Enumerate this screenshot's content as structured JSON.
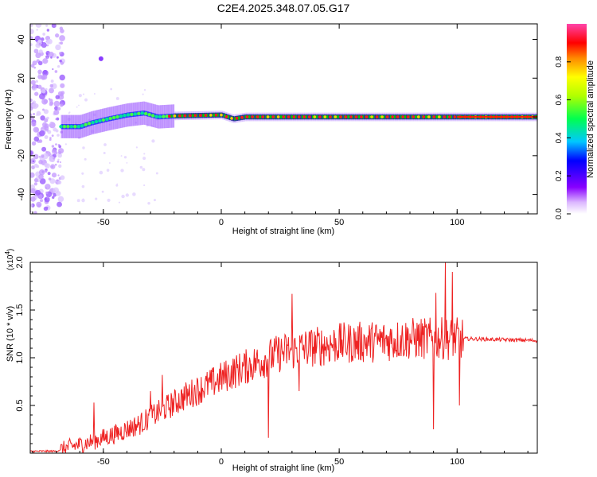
{
  "title": "C2E4.2025.348.07.05.G17",
  "colors": {
    "snr_line": "#ee2222",
    "axis": "#000000",
    "background": "#ffffff"
  },
  "chart_data": [
    {
      "type": "heatmap",
      "xlabel": "Height of straight line (km)",
      "ylabel": "Frequency (Hz)",
      "xlim": [
        -81,
        134
      ],
      "ylim": [
        -50,
        48
      ],
      "x_ticks": [
        -50,
        0,
        50,
        100
      ],
      "y_ticks": [
        -40,
        -20,
        0,
        20,
        40
      ],
      "colorbar": {
        "label": "Normalized spectral amplitude",
        "range": [
          0.0,
          1.0
        ],
        "ticks": [
          "0.0",
          "0.2",
          "0.4",
          "0.6",
          "0.8"
        ]
      },
      "ridge": {
        "description_points": [
          {
            "x": -68,
            "y": -5
          },
          {
            "x": -60,
            "y": -5
          },
          {
            "x": -55,
            "y": -3
          },
          {
            "x": -48,
            "y": -1
          },
          {
            "x": -40,
            "y": 1
          },
          {
            "x": -33,
            "y": 2
          },
          {
            "x": -27,
            "y": 0
          },
          {
            "x": -20,
            "y": 0.5
          },
          {
            "x": 0,
            "y": 1
          },
          {
            "x": 5,
            "y": -1
          },
          {
            "x": 10,
            "y": 0
          },
          {
            "x": 50,
            "y": 0
          },
          {
            "x": 90,
            "y": 0
          },
          {
            "x": 100,
            "y": 0
          },
          {
            "x": 134,
            "y": 0
          }
        ]
      }
    },
    {
      "type": "line",
      "xlabel": "Height of straight line (km)",
      "ylabel": "SNR (10 * v/v)",
      "y_multiplier": "(x10",
      "y_multiplier_exp": "4",
      "y_multiplier_close": ")",
      "xlim": [
        -81,
        134
      ],
      "ylim": [
        0,
        2.0
      ],
      "x_ticks": [
        -50,
        0,
        50,
        100
      ],
      "y_ticks": [
        0.5,
        1.0,
        1.5,
        2.0
      ],
      "trend_points": [
        {
          "x": -81,
          "y": 0.02
        },
        {
          "x": -70,
          "y": 0.02
        },
        {
          "x": -65,
          "y": 0.06
        },
        {
          "x": -55,
          "y": 0.12
        },
        {
          "x": -45,
          "y": 0.2
        },
        {
          "x": -35,
          "y": 0.3
        },
        {
          "x": -25,
          "y": 0.45
        },
        {
          "x": -15,
          "y": 0.6
        },
        {
          "x": -5,
          "y": 0.72
        },
        {
          "x": 5,
          "y": 0.85
        },
        {
          "x": 15,
          "y": 0.95
        },
        {
          "x": 25,
          "y": 1.05
        },
        {
          "x": 35,
          "y": 1.1
        },
        {
          "x": 50,
          "y": 1.15
        },
        {
          "x": 65,
          "y": 1.17
        },
        {
          "x": 80,
          "y": 1.2
        },
        {
          "x": 90,
          "y": 1.2
        },
        {
          "x": 103,
          "y": 1.2
        },
        {
          "x": 134,
          "y": 1.18
        }
      ],
      "peaks": [
        {
          "x": -54,
          "y": 0.53
        },
        {
          "x": -30,
          "y": 0.65
        },
        {
          "x": -25,
          "y": 0.82
        },
        {
          "x": 20,
          "y": 0.16
        },
        {
          "x": 30,
          "y": 1.67
        },
        {
          "x": 33,
          "y": 0.65
        },
        {
          "x": 90,
          "y": 0.25
        },
        {
          "x": 91,
          "y": 1.68
        },
        {
          "x": 95,
          "y": 2.0
        },
        {
          "x": 98,
          "y": 1.9
        },
        {
          "x": 101,
          "y": 0.5
        }
      ]
    }
  ]
}
